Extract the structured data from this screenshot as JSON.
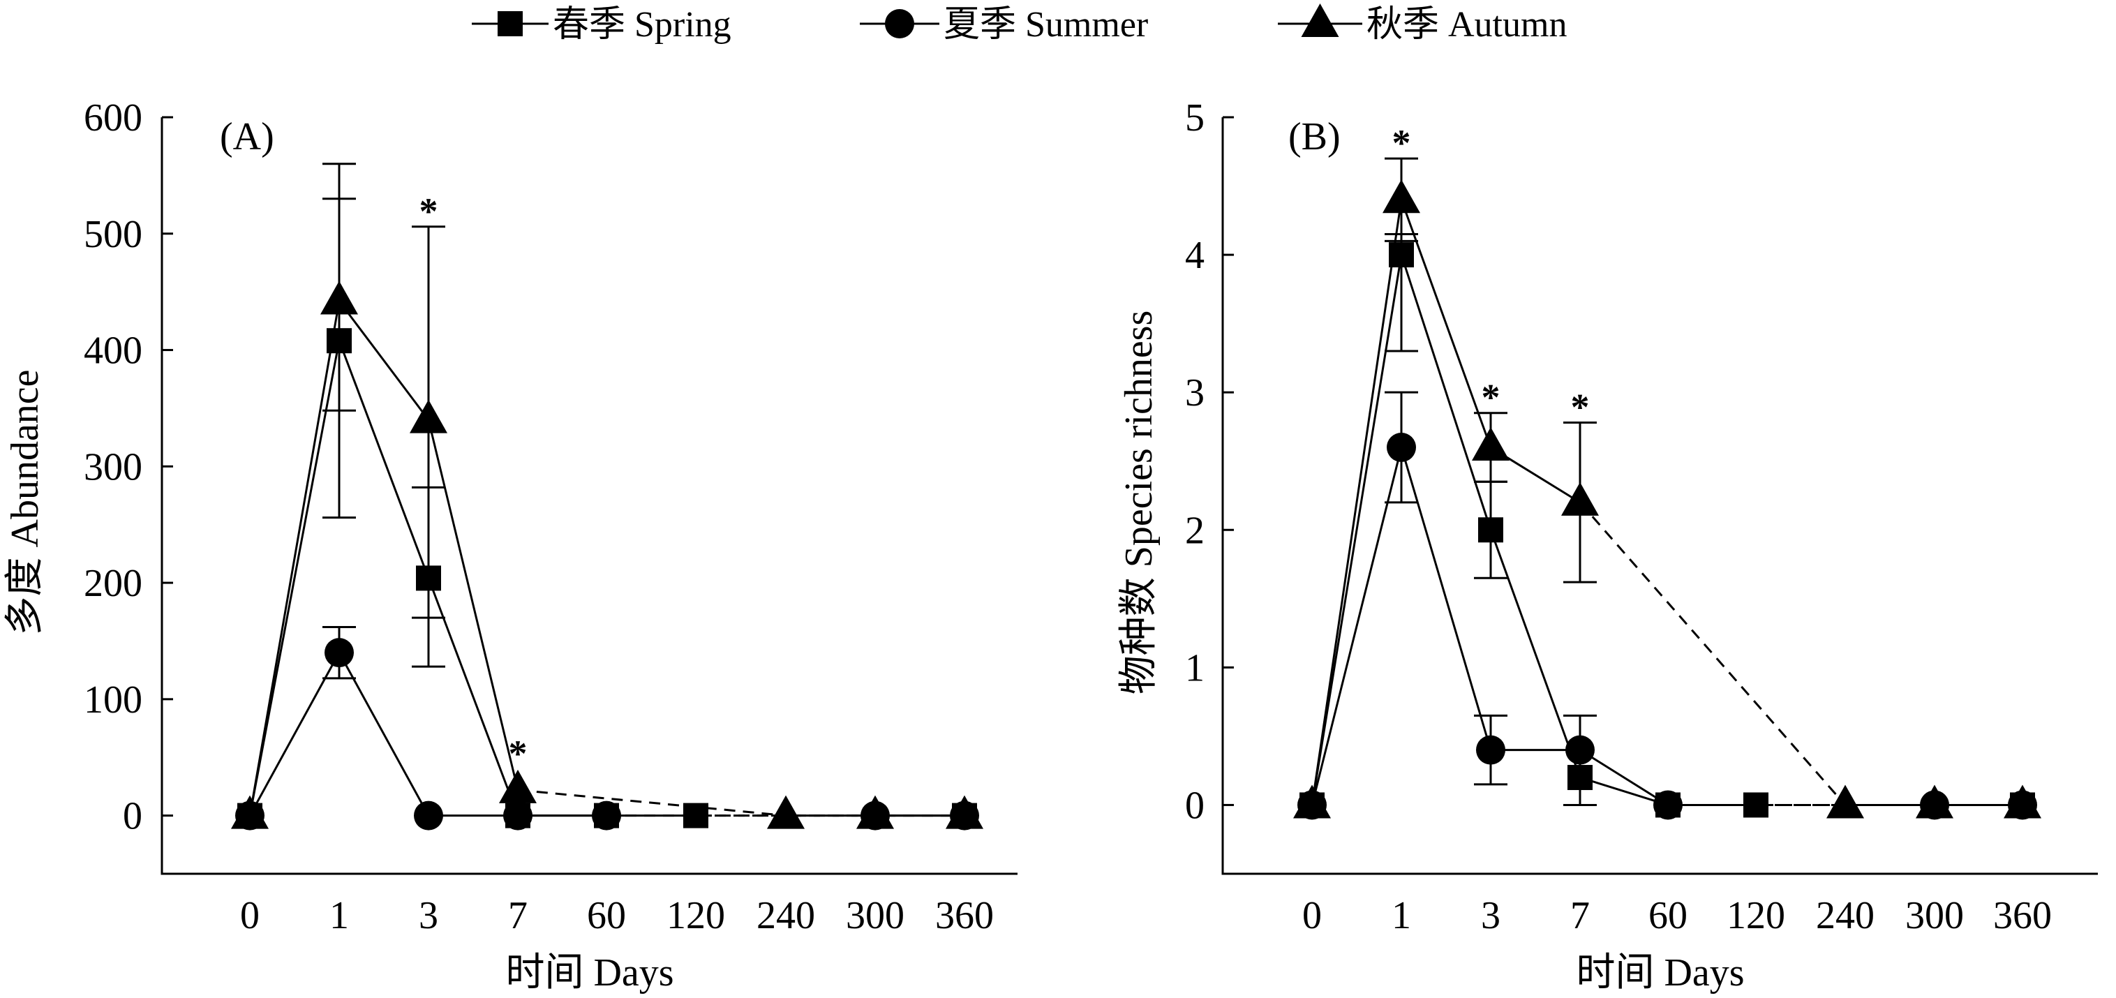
{
  "legend": [
    {
      "key": "spring",
      "label": "春季 Spring",
      "marker": "square"
    },
    {
      "key": "summer",
      "label": "夏季 Summer",
      "marker": "circle"
    },
    {
      "key": "autumn",
      "label": "秋季 Autumn",
      "marker": "triangle"
    }
  ],
  "chart_data": [
    {
      "type": "line",
      "panel_label": "(A)",
      "xlabel": "时间 Days",
      "ylabel": "多度 Abundance",
      "categories": [
        "0",
        "1",
        "3",
        "7",
        "60",
        "120",
        "240",
        "300",
        "360"
      ],
      "ylim": [
        -50,
        600
      ],
      "yticks": [
        0,
        100,
        200,
        300,
        400,
        500,
        600
      ],
      "grid": false,
      "series": [
        {
          "name": "春季 Spring",
          "marker": "square",
          "values": [
            0,
            408,
            204,
            0,
            0,
            0,
            null,
            null,
            0
          ],
          "err_high": [
            null,
            530,
            282,
            null,
            null,
            null,
            null,
            null,
            null
          ],
          "err_low": [
            null,
            348,
            128,
            null,
            null,
            null,
            null,
            null,
            null
          ]
        },
        {
          "name": "夏季 Summer",
          "marker": "circle",
          "values": [
            0,
            140,
            0,
            0,
            0,
            null,
            null,
            0,
            0
          ],
          "err_high": [
            null,
            162,
            null,
            null,
            null,
            null,
            null,
            null,
            null
          ],
          "err_low": [
            null,
            118,
            null,
            null,
            null,
            null,
            null,
            null,
            null
          ]
        },
        {
          "name": "秋季 Autumn",
          "marker": "triangle",
          "values": [
            0,
            442,
            340,
            22,
            null,
            null,
            0,
            0,
            0
          ],
          "err_high": [
            null,
            560,
            506,
            null,
            null,
            null,
            null,
            null,
            null
          ],
          "err_low": [
            null,
            256,
            170,
            null,
            null,
            null,
            null,
            null,
            null
          ]
        }
      ],
      "annotations": [
        {
          "category": "3",
          "text": "*"
        },
        {
          "category": "7",
          "text": "*"
        }
      ]
    },
    {
      "type": "line",
      "panel_label": "(B)",
      "xlabel": "时间 Days",
      "ylabel": "物种数 Species richness",
      "categories": [
        "0",
        "1",
        "3",
        "7",
        "60",
        "120",
        "240",
        "300",
        "360"
      ],
      "ylim": [
        -0.5,
        5
      ],
      "yticks": [
        0,
        1,
        2,
        3,
        4,
        5
      ],
      "grid": false,
      "series": [
        {
          "name": "春季 Spring",
          "marker": "square",
          "values": [
            0,
            4.0,
            2.0,
            0.2,
            0,
            0,
            null,
            null,
            0
          ],
          "err_high": [
            null,
            4.15,
            2.35,
            null,
            null,
            null,
            null,
            null,
            null
          ],
          "err_low": [
            null,
            3.3,
            1.65,
            null,
            null,
            null,
            null,
            null,
            null
          ]
        },
        {
          "name": "夏季 Summer",
          "marker": "circle",
          "values": [
            0,
            2.6,
            0.4,
            0.4,
            0,
            null,
            null,
            0,
            0
          ],
          "err_high": [
            null,
            3.0,
            0.65,
            0.65,
            null,
            null,
            null,
            null,
            null
          ],
          "err_low": [
            null,
            2.2,
            0.15,
            0.0,
            null,
            null,
            null,
            null,
            null
          ]
        },
        {
          "name": "秋季 Autumn",
          "marker": "triangle",
          "values": [
            0,
            4.4,
            2.6,
            2.2,
            null,
            null,
            0,
            0,
            0
          ],
          "err_high": [
            null,
            4.7,
            2.85,
            2.78,
            null,
            null,
            null,
            null,
            null
          ],
          "err_low": [
            null,
            4.1,
            2.35,
            1.62,
            null,
            null,
            null,
            null,
            null
          ]
        }
      ],
      "annotations": [
        {
          "category": "1",
          "text": "*"
        },
        {
          "category": "3",
          "text": "*"
        },
        {
          "category": "7",
          "text": "*"
        }
      ]
    }
  ]
}
